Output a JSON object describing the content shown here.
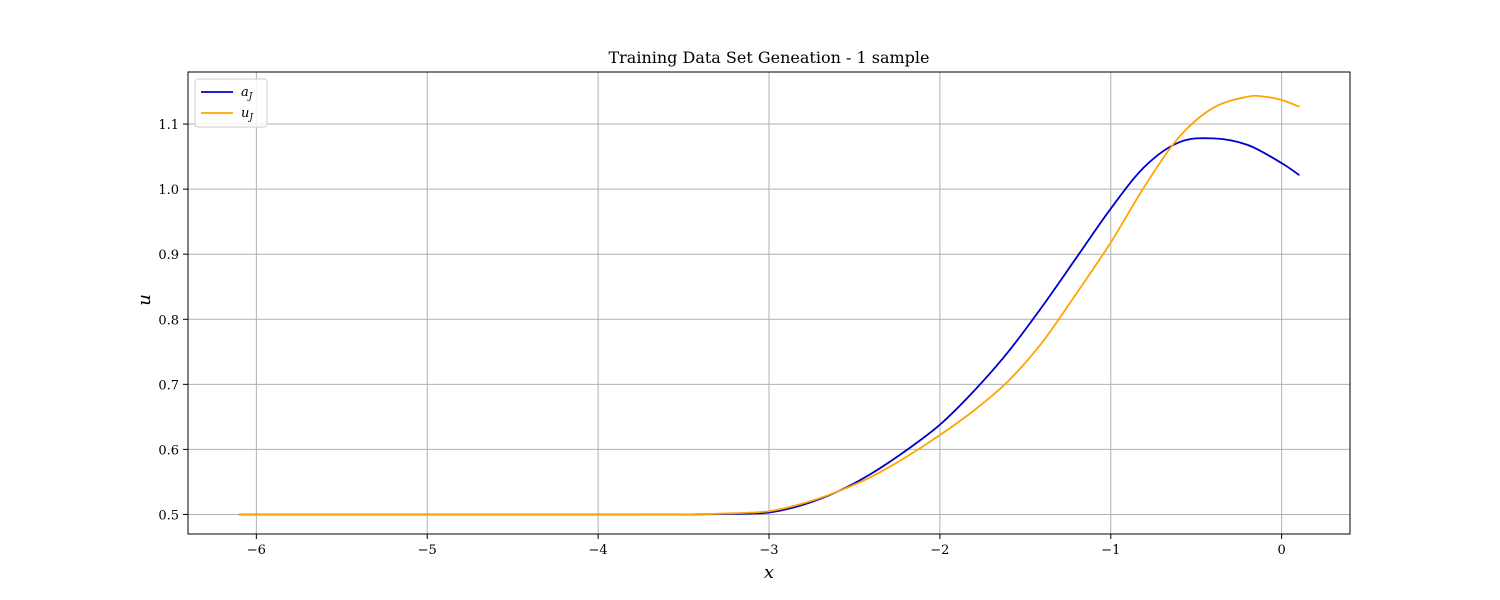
{
  "chart_data": {
    "type": "line",
    "title": "Training Data Set Geneation - 1 sample",
    "xlabel": "x",
    "ylabel": "u",
    "xlim": [
      -6.4,
      0.4
    ],
    "ylim": [
      0.47,
      1.18
    ],
    "xticks": [
      -6,
      -5,
      -4,
      -3,
      -2,
      -1,
      0
    ],
    "xtick_labels": [
      "−6",
      "−5",
      "−4",
      "−3",
      "−2",
      "−1",
      "0"
    ],
    "yticks": [
      0.5,
      0.6,
      0.7,
      0.8,
      0.9,
      1.0,
      1.1
    ],
    "ytick_labels": [
      "0.5",
      "0.6",
      "0.7",
      "0.8",
      "0.9",
      "1.0",
      "1.1"
    ],
    "grid": true,
    "legend": {
      "position": "upper-left"
    },
    "series": [
      {
        "name": "aJ",
        "name_main": "a",
        "name_sub": "J",
        "color": "#0000cc",
        "x": [
          -6.1,
          -4.0,
          -3.5,
          -3.2,
          -3.0,
          -2.8,
          -2.6,
          -2.4,
          -2.2,
          -2.0,
          -1.8,
          -1.6,
          -1.4,
          -1.2,
          -1.0,
          -0.8,
          -0.6,
          -0.4,
          -0.2,
          0.0,
          0.1
        ],
        "y": [
          0.5,
          0.5,
          0.5,
          0.501,
          0.503,
          0.515,
          0.535,
          0.563,
          0.598,
          0.638,
          0.69,
          0.75,
          0.82,
          0.895,
          0.97,
          1.035,
          1.072,
          1.078,
          1.068,
          1.04,
          1.022
        ]
      },
      {
        "name": "uJ",
        "name_main": "u",
        "name_sub": "J",
        "color": "#ffa500",
        "x": [
          -6.1,
          -4.0,
          -3.5,
          -3.2,
          -3.0,
          -2.8,
          -2.6,
          -2.4,
          -2.2,
          -2.0,
          -1.8,
          -1.6,
          -1.4,
          -1.2,
          -1.0,
          -0.8,
          -0.6,
          -0.4,
          -0.2,
          -0.1,
          0.0,
          0.1
        ],
        "y": [
          0.5,
          0.5,
          0.5,
          0.502,
          0.505,
          0.517,
          0.535,
          0.558,
          0.588,
          0.622,
          0.66,
          0.705,
          0.765,
          0.84,
          0.918,
          1.005,
          1.08,
          1.125,
          1.142,
          1.142,
          1.137,
          1.127
        ]
      }
    ]
  }
}
